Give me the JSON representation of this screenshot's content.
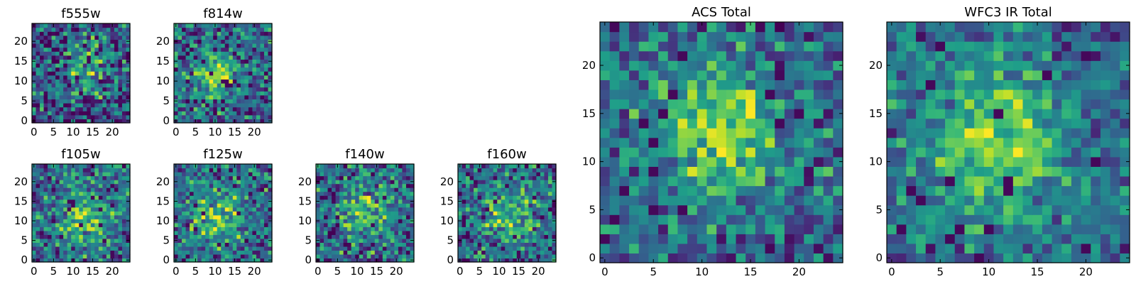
{
  "chart_data": [
    {
      "type": "heatmap",
      "title": "f555w",
      "grid": false,
      "xlim": [
        -0.5,
        24.5
      ],
      "ylim": [
        -0.5,
        24.5
      ],
      "xticks": [
        0,
        5,
        10,
        15,
        20
      ],
      "yticks": [
        0,
        5,
        10,
        15,
        20
      ],
      "center": [
        14,
        14
      ],
      "sigma": 4.5,
      "peak": 0.35,
      "noise": 0.55,
      "seed": 11,
      "colormap": "viridis"
    },
    {
      "type": "heatmap",
      "title": "f814w",
      "grid": false,
      "xlim": [
        -0.5,
        24.5
      ],
      "ylim": [
        -0.5,
        24.5
      ],
      "xticks": [
        0,
        5,
        10,
        15,
        20
      ],
      "yticks": [
        0,
        5,
        10,
        15,
        20
      ],
      "center": [
        10,
        12
      ],
      "sigma": 3.5,
      "peak": 0.5,
      "noise": 0.45,
      "seed": 23,
      "colormap": "viridis"
    },
    {
      "type": "heatmap",
      "title": "f105w",
      "grid": false,
      "xlim": [
        -0.5,
        24.5
      ],
      "ylim": [
        -0.5,
        24.5
      ],
      "xticks": [
        0,
        5,
        10,
        15,
        20
      ],
      "yticks": [
        0,
        5,
        10,
        15,
        20
      ],
      "center": [
        13,
        11
      ],
      "sigma": 5,
      "peak": 0.35,
      "noise": 0.45,
      "seed": 37,
      "colormap": "viridis"
    },
    {
      "type": "heatmap",
      "title": "f125w",
      "grid": false,
      "xlim": [
        -0.5,
        24.5
      ],
      "ylim": [
        -0.5,
        24.5
      ],
      "xticks": [
        0,
        5,
        10,
        15,
        20
      ],
      "yticks": [
        0,
        5,
        10,
        15,
        20
      ],
      "center": [
        11,
        11
      ],
      "sigma": 5,
      "peak": 0.35,
      "noise": 0.45,
      "seed": 41,
      "colormap": "viridis"
    },
    {
      "type": "heatmap",
      "title": "f140w",
      "grid": false,
      "xlim": [
        -0.5,
        24.5
      ],
      "ylim": [
        -0.5,
        24.5
      ],
      "xticks": [
        0,
        5,
        10,
        15,
        20
      ],
      "yticks": [
        0,
        5,
        10,
        15,
        20
      ],
      "center": [
        12,
        12
      ],
      "sigma": 4.5,
      "peak": 0.35,
      "noise": 0.5,
      "seed": 53,
      "colormap": "viridis"
    },
    {
      "type": "heatmap",
      "title": "f160w",
      "grid": false,
      "xlim": [
        -0.5,
        24.5
      ],
      "ylim": [
        -0.5,
        24.5
      ],
      "xticks": [
        0,
        5,
        10,
        15,
        20
      ],
      "yticks": [
        0,
        5,
        10,
        15,
        20
      ],
      "center": [
        12,
        12
      ],
      "sigma": 5,
      "peak": 0.35,
      "noise": 0.45,
      "seed": 67,
      "colormap": "viridis"
    },
    {
      "type": "heatmap",
      "title": "ACS Total",
      "grid": false,
      "xlim": [
        -0.5,
        24.5
      ],
      "ylim": [
        -0.5,
        24.5
      ],
      "xticks": [
        0,
        5,
        10,
        15,
        20
      ],
      "yticks": [
        0,
        5,
        10,
        15,
        20
      ],
      "center": [
        12,
        13
      ],
      "sigma": 4.5,
      "peak": 0.45,
      "noise": 0.4,
      "seed": 79,
      "colormap": "viridis"
    },
    {
      "type": "heatmap",
      "title": "WFC3 IR Total",
      "grid": false,
      "xlim": [
        -0.5,
        24.5
      ],
      "ylim": [
        -0.5,
        24.5
      ],
      "xticks": [
        0,
        5,
        10,
        15,
        20
      ],
      "yticks": [
        0,
        5,
        10,
        15,
        20
      ],
      "center": [
        11,
        12
      ],
      "sigma": 5,
      "peak": 0.45,
      "noise": 0.35,
      "seed": 97,
      "colormap": "viridis"
    }
  ]
}
